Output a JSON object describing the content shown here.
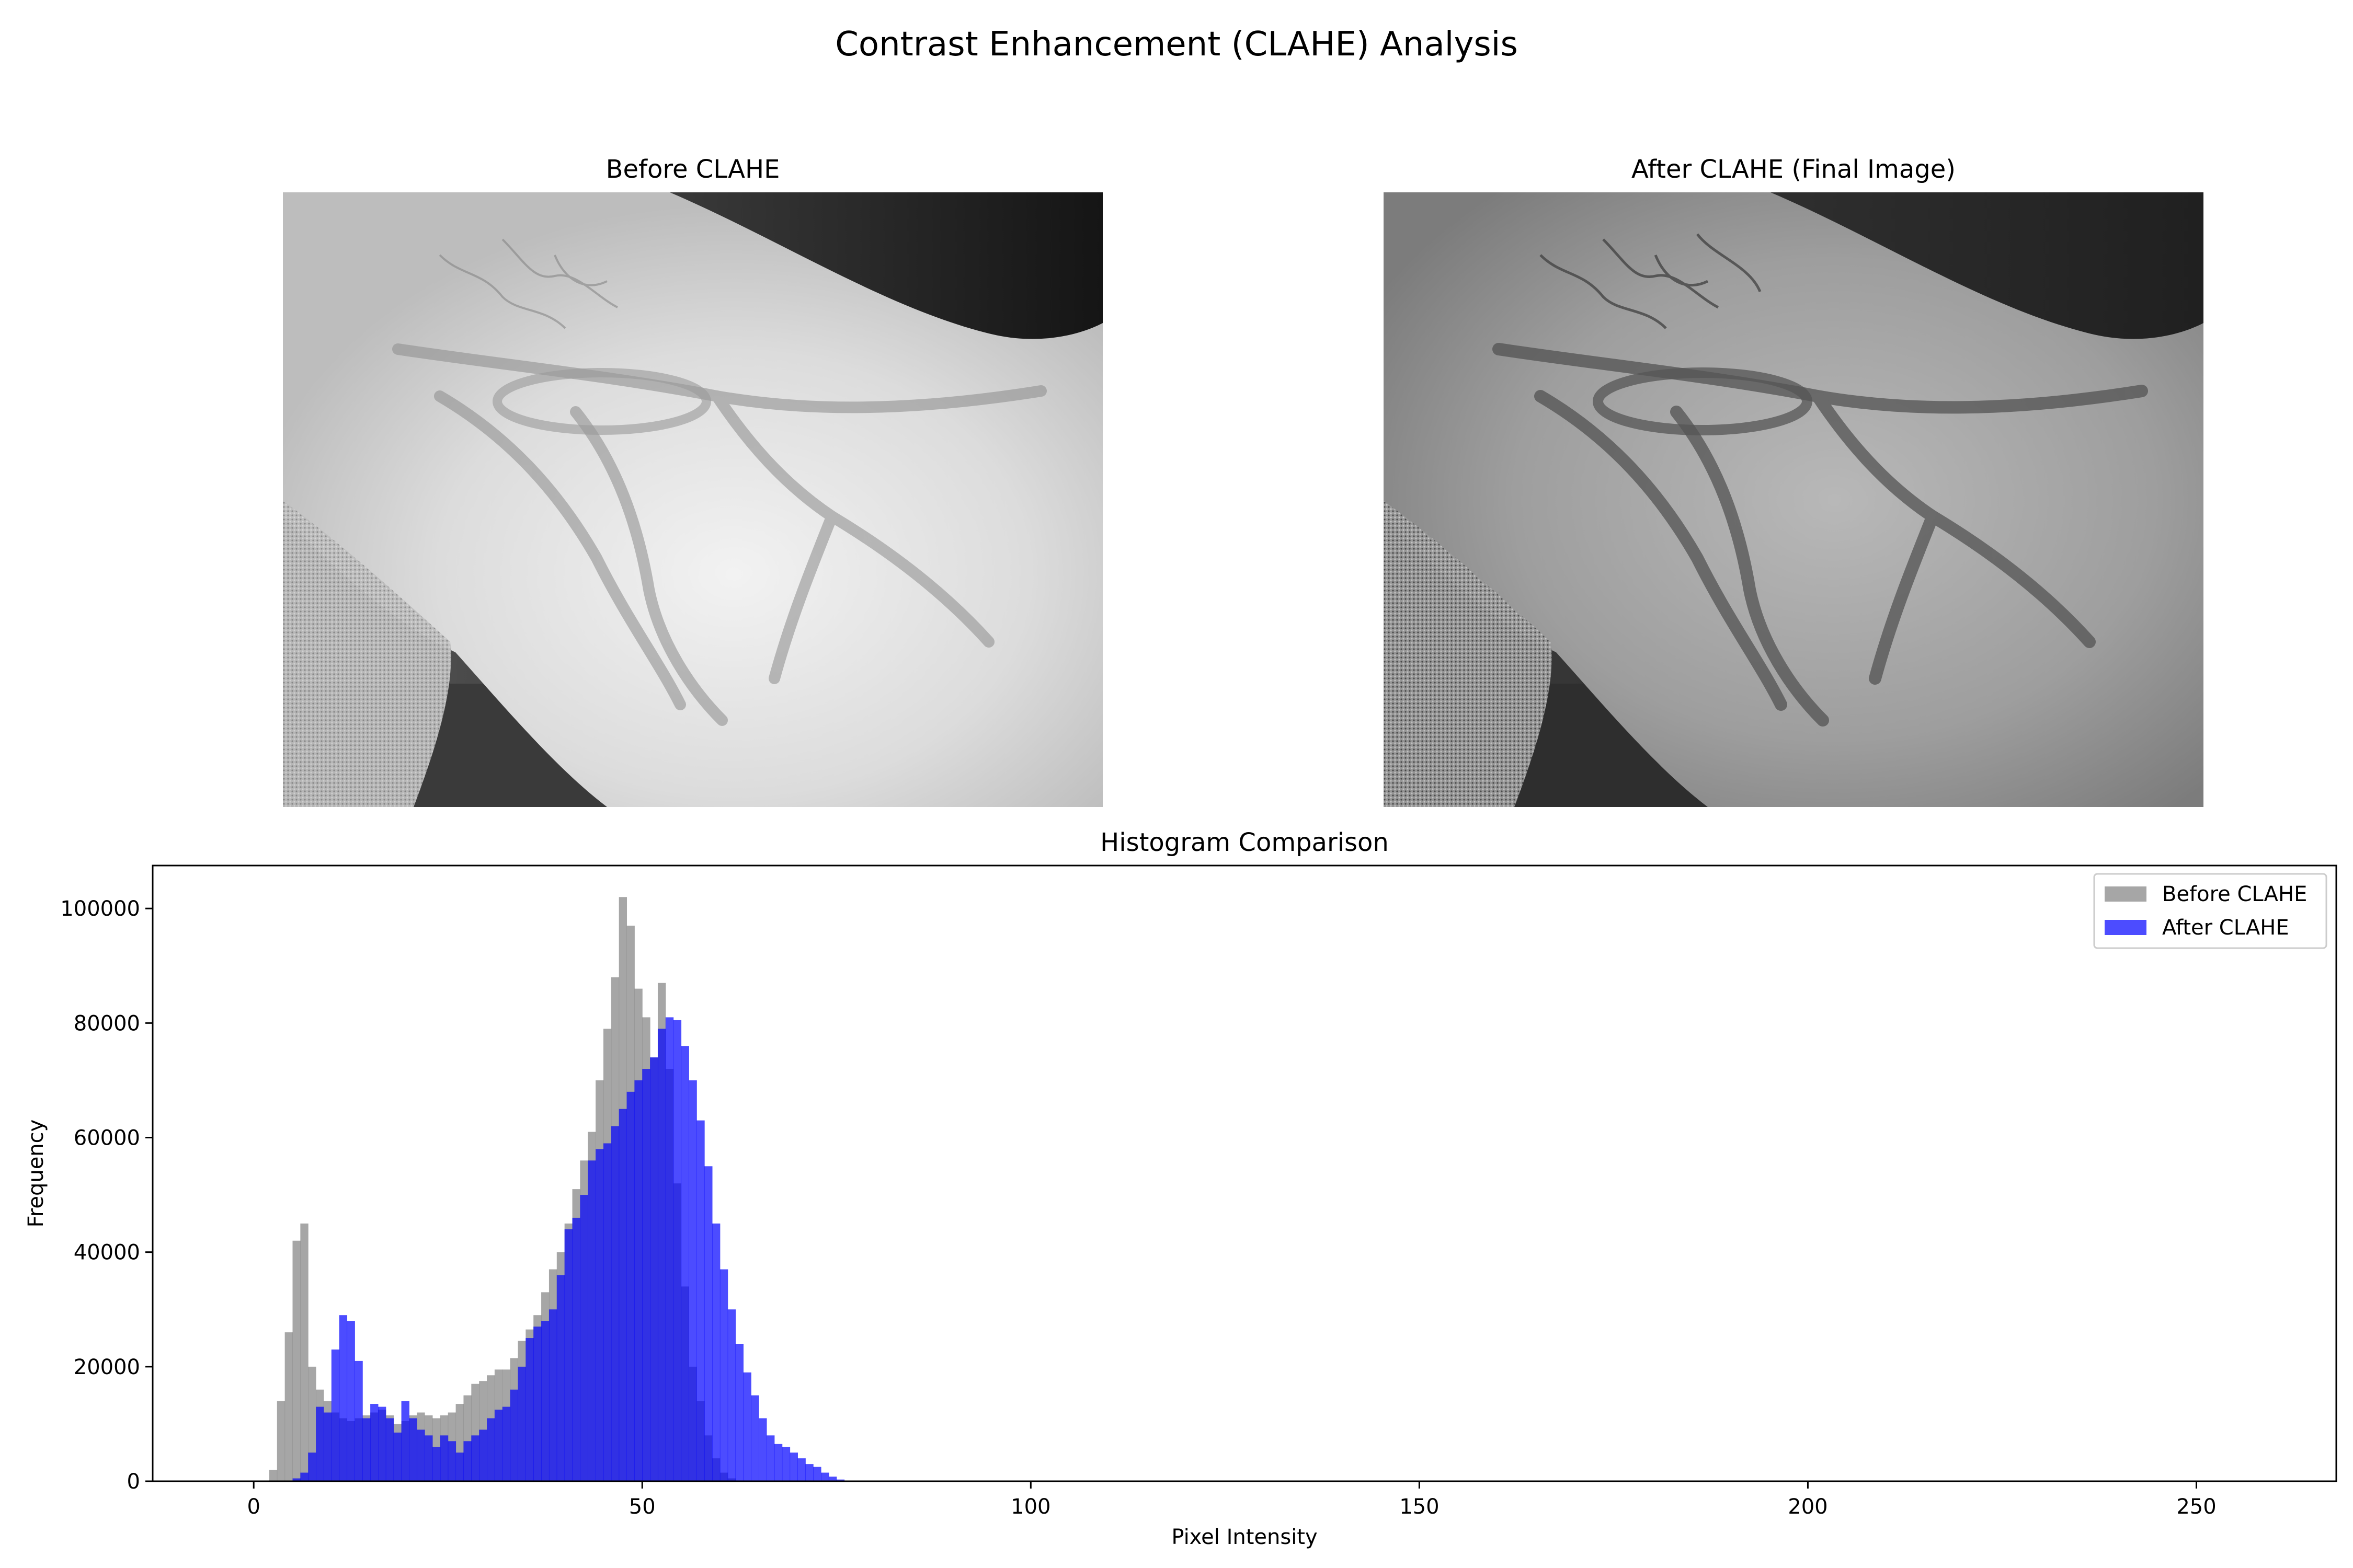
{
  "figure": {
    "suptitle": "Contrast Enhancement (CLAHE) Analysis"
  },
  "images": {
    "before_title": "Before CLAHE",
    "after_title": "After CLAHE (Final Image)"
  },
  "chart_data": {
    "type": "bar",
    "title": "Histogram Comparison",
    "xlabel": "Pixel Intensity",
    "ylabel": "Frequency",
    "xlim": [
      -13,
      268
    ],
    "ylim": [
      0,
      107500
    ],
    "xticks": [
      0,
      50,
      100,
      150,
      200,
      250
    ],
    "yticks": [
      0,
      20000,
      40000,
      60000,
      80000,
      100000
    ],
    "legend_position": "upper right",
    "x": [
      2,
      3,
      4,
      5,
      6,
      7,
      8,
      9,
      10,
      11,
      12,
      13,
      14,
      15,
      16,
      17,
      18,
      19,
      20,
      21,
      22,
      23,
      24,
      25,
      26,
      27,
      28,
      29,
      30,
      31,
      32,
      33,
      34,
      35,
      36,
      37,
      38,
      39,
      40,
      41,
      42,
      43,
      44,
      45,
      46,
      47,
      48,
      49,
      50,
      51,
      52,
      53,
      54,
      55,
      56,
      57,
      58,
      59,
      60,
      61,
      62,
      63,
      64,
      65,
      66,
      67,
      68,
      69,
      70,
      71,
      72,
      73,
      74,
      75,
      76,
      77,
      78,
      79,
      80,
      81,
      82,
      83,
      84,
      85,
      86,
      87,
      88,
      89,
      90,
      91,
      92
    ],
    "series": [
      {
        "name": "Before CLAHE",
        "color": "#808080",
        "alpha": 0.7,
        "values": [
          2000,
          14000,
          26000,
          42000,
          45000,
          20000,
          16000,
          14000,
          12000,
          11000,
          10500,
          11000,
          11500,
          12000,
          12500,
          11500,
          10000,
          10500,
          11500,
          12000,
          11500,
          11000,
          11500,
          12000,
          13500,
          15000,
          17000,
          17500,
          18500,
          19500,
          19500,
          21500,
          24500,
          26500,
          29000,
          33000,
          37000,
          40000,
          45000,
          51000,
          56000,
          61000,
          70000,
          79000,
          88000,
          102000,
          97000,
          86000,
          81000,
          74000,
          87000,
          72000,
          52000,
          34000,
          20000,
          14000,
          8000,
          4000,
          1500,
          500,
          0,
          0,
          0,
          0,
          0,
          0,
          0,
          0,
          0,
          0,
          0,
          0,
          0,
          0,
          0,
          0,
          0,
          0,
          0,
          0,
          0,
          0,
          0,
          0,
          0,
          0,
          0,
          0,
          0,
          0,
          0
        ]
      },
      {
        "name": "After CLAHE",
        "color": "#0000ff",
        "alpha": 0.7,
        "values": [
          0,
          0,
          0,
          500,
          1500,
          5000,
          13000,
          12000,
          23000,
          29000,
          28000,
          21000,
          11000,
          13500,
          13000,
          11000,
          8500,
          14000,
          11000,
          9000,
          8000,
          6000,
          8000,
          7000,
          5000,
          7000,
          8000,
          9000,
          11000,
          12500,
          13000,
          16000,
          20000,
          25000,
          27000,
          28000,
          30000,
          36000,
          44000,
          46000,
          50000,
          56000,
          58000,
          59000,
          62000,
          65000,
          68000,
          70000,
          72000,
          74000,
          79000,
          81000,
          80500,
          76000,
          70000,
          63000,
          55000,
          45000,
          37000,
          30000,
          24000,
          19000,
          15000,
          11000,
          8000,
          6500,
          6000,
          5000,
          4000,
          3000,
          2500,
          1500,
          800,
          300,
          0,
          0,
          0,
          0,
          0,
          0,
          0,
          0,
          0,
          0,
          0,
          0,
          0,
          0,
          0,
          0,
          0
        ]
      }
    ]
  }
}
